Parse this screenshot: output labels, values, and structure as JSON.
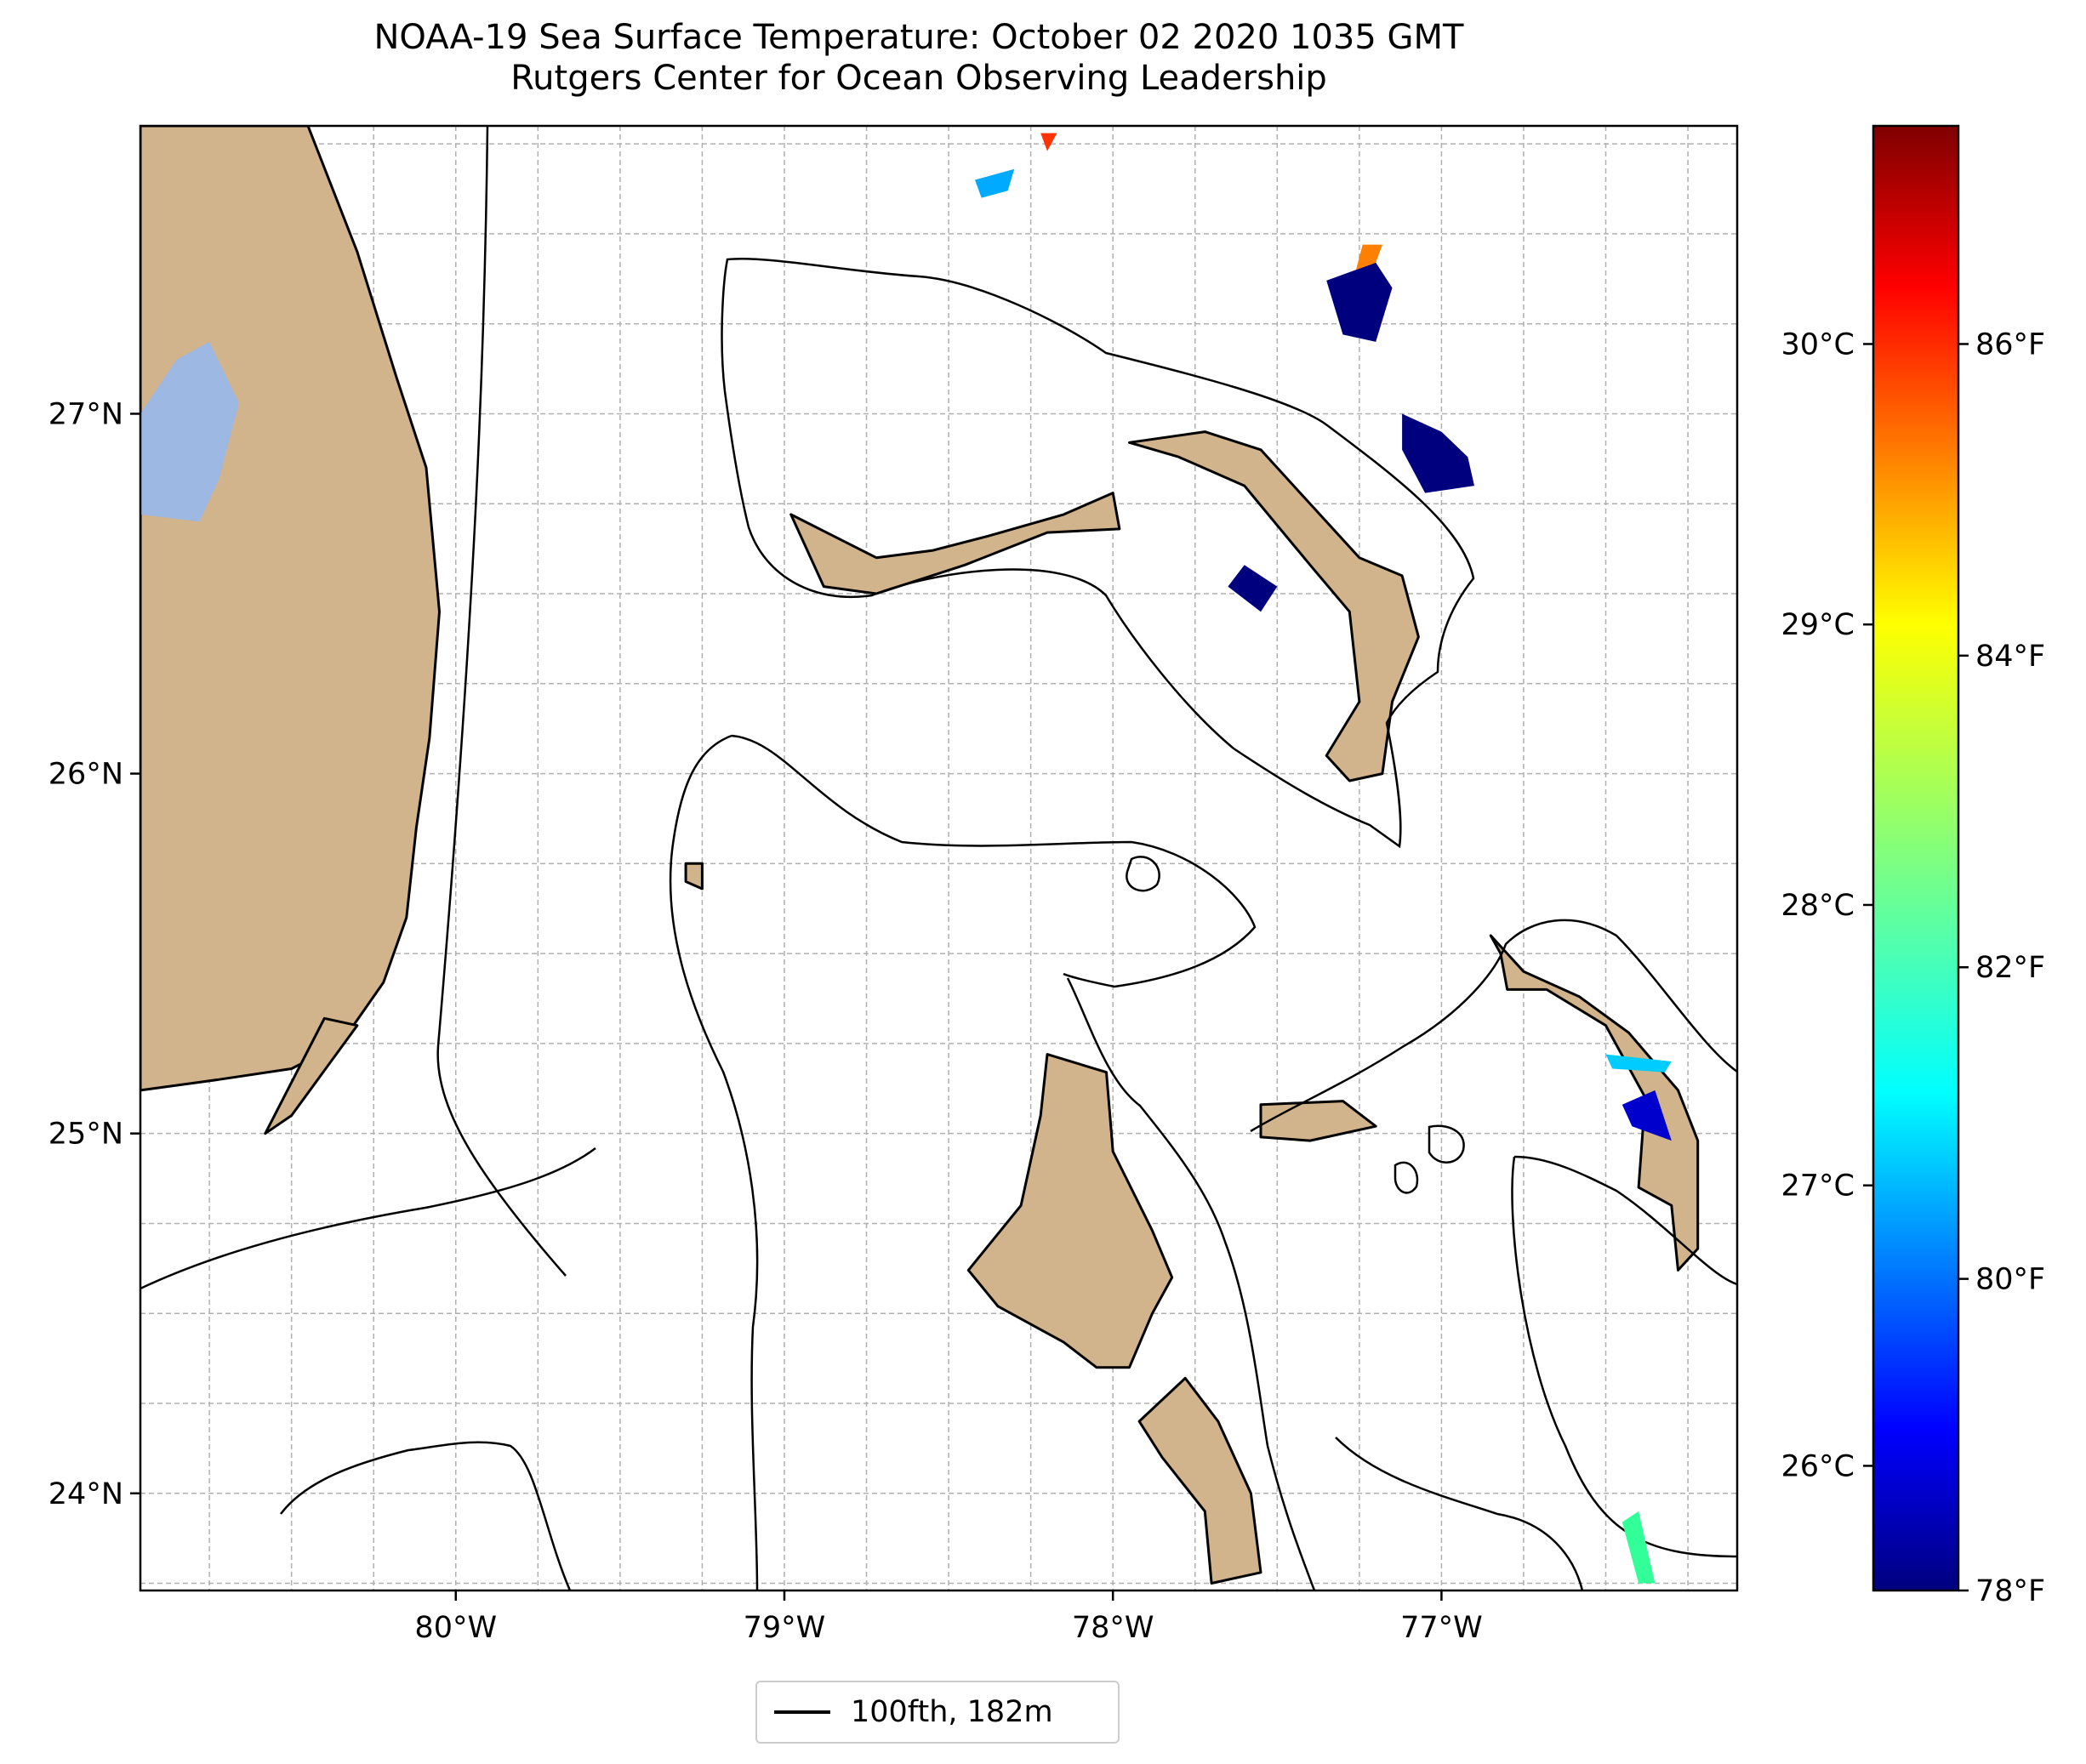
{
  "title": {
    "line1": "NOAA-19 Sea Surface Temperature: October 02 2020 1035 GMT",
    "line2": "Rutgers Center for Ocean Observing Leadership"
  },
  "map": {
    "extent": {
      "lon_min": -80.96,
      "lon_max": -76.1,
      "lat_min": 23.73,
      "lat_max": 27.8
    },
    "lon_ticks": [
      {
        "value": -80,
        "label": "80°W"
      },
      {
        "value": -79,
        "label": "79°W"
      },
      {
        "value": -78,
        "label": "78°W"
      },
      {
        "value": -77,
        "label": "77°W"
      }
    ],
    "lat_ticks": [
      {
        "value": 24,
        "label": "24°N"
      },
      {
        "value": 25,
        "label": "25°N"
      },
      {
        "value": 26,
        "label": "26°N"
      },
      {
        "value": 27,
        "label": "27°N"
      }
    ],
    "gridlines": true,
    "land_color": "#d2b48c",
    "lake_color": "#9cb8e3",
    "ocean_color": "#ffffff",
    "landmasses": [
      {
        "name": "Florida",
        "points": [
          [
            -80.96,
            27.8
          ],
          [
            -80.45,
            27.8
          ],
          [
            -80.3,
            27.45
          ],
          [
            -80.18,
            27.1
          ],
          [
            -80.09,
            26.85
          ],
          [
            -80.05,
            26.45
          ],
          [
            -80.08,
            26.1
          ],
          [
            -80.12,
            25.85
          ],
          [
            -80.15,
            25.6
          ],
          [
            -80.22,
            25.42
          ],
          [
            -80.35,
            25.25
          ],
          [
            -80.5,
            25.18
          ],
          [
            -80.72,
            25.15
          ],
          [
            -80.96,
            25.12
          ]
        ]
      },
      {
        "name": "Grand Bahama",
        "points": [
          [
            -78.98,
            26.72
          ],
          [
            -78.72,
            26.6
          ],
          [
            -78.55,
            26.62
          ],
          [
            -78.38,
            26.66
          ],
          [
            -78.15,
            26.72
          ],
          [
            -78.0,
            26.78
          ],
          [
            -77.98,
            26.68
          ],
          [
            -78.2,
            26.67
          ],
          [
            -78.45,
            26.58
          ],
          [
            -78.72,
            26.5
          ],
          [
            -78.88,
            26.52
          ]
        ]
      },
      {
        "name": "Abaco",
        "points": [
          [
            -77.95,
            26.92
          ],
          [
            -77.72,
            26.95
          ],
          [
            -77.55,
            26.9
          ],
          [
            -77.4,
            26.75
          ],
          [
            -77.25,
            26.6
          ],
          [
            -77.12,
            26.55
          ],
          [
            -77.07,
            26.38
          ],
          [
            -77.15,
            26.2
          ],
          [
            -77.18,
            26.0
          ],
          [
            -77.28,
            25.98
          ],
          [
            -77.35,
            26.05
          ],
          [
            -77.25,
            26.2
          ],
          [
            -77.28,
            26.45
          ],
          [
            -77.4,
            26.58
          ],
          [
            -77.6,
            26.8
          ],
          [
            -77.8,
            26.88
          ]
        ]
      },
      {
        "name": "Andros",
        "points": [
          [
            -78.2,
            25.22
          ],
          [
            -78.02,
            25.17
          ],
          [
            -78.0,
            24.95
          ],
          [
            -77.88,
            24.73
          ],
          [
            -77.82,
            24.6
          ],
          [
            -77.88,
            24.5
          ],
          [
            -77.95,
            24.35
          ],
          [
            -78.05,
            24.35
          ],
          [
            -78.15,
            24.42
          ],
          [
            -78.35,
            24.52
          ],
          [
            -78.44,
            24.62
          ],
          [
            -78.28,
            24.8
          ],
          [
            -78.22,
            25.05
          ]
        ]
      },
      {
        "name": "Andros South",
        "points": [
          [
            -77.78,
            24.32
          ],
          [
            -77.68,
            24.2
          ],
          [
            -77.58,
            24.0
          ],
          [
            -77.55,
            23.78
          ],
          [
            -77.7,
            23.75
          ],
          [
            -77.72,
            23.95
          ],
          [
            -77.85,
            24.1
          ],
          [
            -77.92,
            24.2
          ]
        ]
      },
      {
        "name": "New Providence",
        "points": [
          [
            -77.55,
            25.08
          ],
          [
            -77.3,
            25.09
          ],
          [
            -77.2,
            25.02
          ],
          [
            -77.4,
            24.98
          ],
          [
            -77.55,
            24.99
          ]
        ]
      },
      {
        "name": "Eleuthera",
        "points": [
          [
            -76.85,
            25.55
          ],
          [
            -76.75,
            25.45
          ],
          [
            -76.58,
            25.38
          ],
          [
            -76.43,
            25.28
          ],
          [
            -76.28,
            25.12
          ],
          [
            -76.22,
            24.98
          ],
          [
            -76.22,
            24.68
          ],
          [
            -76.28,
            24.62
          ],
          [
            -76.3,
            24.8
          ],
          [
            -76.4,
            24.85
          ],
          [
            -76.38,
            25.1
          ],
          [
            -76.5,
            25.3
          ],
          [
            -76.68,
            25.4
          ],
          [
            -76.8,
            25.4
          ],
          [
            -76.82,
            25.5
          ]
        ]
      },
      {
        "name": "Bimini",
        "points": [
          [
            -79.3,
            25.75
          ],
          [
            -79.25,
            25.75
          ],
          [
            -79.25,
            25.68
          ],
          [
            -79.3,
            25.7
          ]
        ]
      },
      {
        "name": "Florida Keys",
        "points": [
          [
            -80.4,
            25.32
          ],
          [
            -80.3,
            25.3
          ],
          [
            -80.5,
            25.05
          ],
          [
            -80.58,
            25.0
          ]
        ]
      }
    ],
    "lake": {
      "name": "Lake Okeechobee",
      "points": [
        [
          -80.96,
          27.0
        ],
        [
          -80.85,
          27.15
        ],
        [
          -80.75,
          27.2
        ],
        [
          -80.66,
          27.03
        ],
        [
          -80.72,
          26.82
        ],
        [
          -80.78,
          26.7
        ],
        [
          -80.96,
          26.72
        ]
      ]
    },
    "sst_patches": [
      {
        "points": [
          [
            -77.35,
            27.37
          ],
          [
            -77.2,
            27.42
          ],
          [
            -77.15,
            27.35
          ],
          [
            -77.2,
            27.2
          ],
          [
            -77.3,
            27.22
          ]
        ],
        "color": "#00007f"
      },
      {
        "points": [
          [
            -77.2,
            27.42
          ],
          [
            -77.18,
            27.47
          ],
          [
            -77.24,
            27.47
          ],
          [
            -77.26,
            27.4
          ]
        ],
        "color": "#ff7f00"
      },
      {
        "points": [
          [
            -77.12,
            27.0
          ],
          [
            -77.0,
            26.95
          ],
          [
            -76.92,
            26.88
          ],
          [
            -76.9,
            26.8
          ],
          [
            -77.05,
            26.78
          ],
          [
            -77.12,
            26.9
          ]
        ],
        "color": "#00007f"
      },
      {
        "points": [
          [
            -77.6,
            26.58
          ],
          [
            -77.5,
            26.52
          ],
          [
            -77.55,
            26.45
          ],
          [
            -77.65,
            26.52
          ]
        ],
        "color": "#00007f"
      },
      {
        "points": [
          [
            -78.2,
            27.73
          ],
          [
            -78.17,
            27.78
          ],
          [
            -78.22,
            27.78
          ]
        ],
        "color": "#ff3300"
      },
      {
        "points": [
          [
            -78.42,
            27.65
          ],
          [
            -78.3,
            27.68
          ],
          [
            -78.32,
            27.62
          ],
          [
            -78.4,
            27.6
          ]
        ],
        "color": "#00aaff"
      },
      {
        "points": [
          [
            -76.45,
            25.08
          ],
          [
            -76.35,
            25.12
          ],
          [
            -76.3,
            24.98
          ],
          [
            -76.42,
            25.02
          ]
        ],
        "color": "#0000cc"
      },
      {
        "points": [
          [
            -76.5,
            25.22
          ],
          [
            -76.3,
            25.2
          ],
          [
            -76.32,
            25.17
          ],
          [
            -76.48,
            25.18
          ]
        ],
        "color": "#00ccff"
      },
      {
        "points": [
          [
            -76.45,
            23.92
          ],
          [
            -76.4,
            23.95
          ],
          [
            -76.35,
            23.75
          ],
          [
            -76.4,
            23.75
          ]
        ],
        "color": "#33ff99"
      }
    ],
    "contour_label": "100fth, 182m"
  },
  "colorbar": {
    "colormap": "jet",
    "celsius_ticks": [
      {
        "value": 26,
        "label": "26°C"
      },
      {
        "value": 27,
        "label": "27°C"
      },
      {
        "value": 28,
        "label": "28°C"
      },
      {
        "value": 29,
        "label": "29°C"
      },
      {
        "value": 30,
        "label": "30°C"
      }
    ],
    "fahrenheit_ticks": [
      {
        "value": 78,
        "label": "78°F"
      },
      {
        "value": 80,
        "label": "80°F"
      },
      {
        "value": 82,
        "label": "82°F"
      },
      {
        "value": 84,
        "label": "84°F"
      },
      {
        "value": 86,
        "label": "86°F"
      }
    ],
    "range_f": [
      78,
      87.4
    ]
  }
}
